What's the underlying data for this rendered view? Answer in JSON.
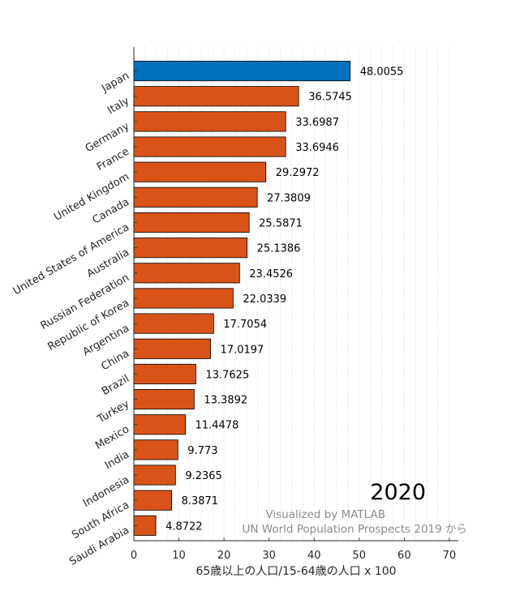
{
  "chart_data": {
    "type": "bar",
    "orientation": "horizontal",
    "categories": [
      "Japan",
      "Italy",
      "Germany",
      "France",
      "United Kingdom",
      "Canada",
      "United States of America",
      "Australia",
      "Russian Federation",
      "Republic of Korea",
      "Argentina",
      "China",
      "Brazil",
      "Turkey",
      "Mexico",
      "India",
      "Indonesia",
      "South Africa",
      "Saudi Arabia"
    ],
    "values": [
      48.0055,
      36.5745,
      33.6987,
      33.6946,
      29.2972,
      27.3809,
      25.5871,
      25.1386,
      23.4526,
      22.0339,
      17.7054,
      17.0197,
      13.7625,
      13.3892,
      11.4478,
      9.773,
      9.2365,
      8.3871,
      4.8722
    ],
    "value_labels": [
      "48.0055",
      "36.5745",
      "33.6987",
      "33.6946",
      "29.2972",
      "27.3809",
      "25.5871",
      "25.1386",
      "23.4526",
      "22.0339",
      "17.7054",
      "17.0197",
      "13.7625",
      "13.3892",
      "11.4478",
      "9.773",
      "9.2365",
      "8.3871",
      "4.8722"
    ],
    "highlight_category": "Japan",
    "colors": {
      "highlight": "#0072BD",
      "default": "#D95319",
      "grid": "#d9d9d9",
      "axis": "#262626"
    },
    "xlabel": "65歳以上の人口/15-64歳の人口 x 100",
    "xlim": [
      0,
      72
    ],
    "xticks": [
      0,
      10,
      20,
      30,
      40,
      50,
      60,
      70
    ],
    "xtick_labels": [
      "0",
      "10",
      "20",
      "30",
      "40",
      "50",
      "60",
      "70"
    ],
    "grid": "vertical dotted",
    "year": "2020",
    "credits": [
      "Visualized by MATLAB",
      "UN World Population Prospects 2019 から"
    ]
  }
}
